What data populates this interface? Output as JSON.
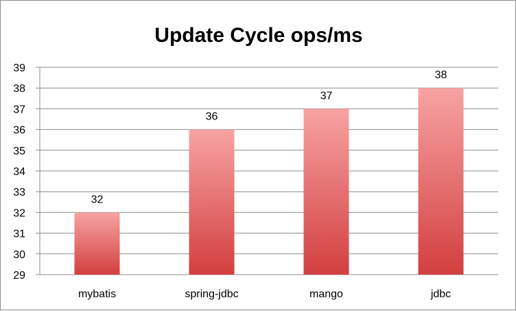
{
  "chart_data": {
    "type": "bar",
    "title": "Update Cycle ops/ms",
    "xlabel": "",
    "ylabel": "",
    "categories": [
      "mybatis",
      "spring-jdbc",
      "mango",
      "jdbc"
    ],
    "values": [
      32,
      36,
      37,
      38
    ],
    "ylim": [
      29,
      39
    ],
    "yticks": [
      29,
      30,
      31,
      32,
      33,
      34,
      35,
      36,
      37,
      38,
      39
    ],
    "data_labels": true,
    "grid": true,
    "legend": "none",
    "bar_color_top": "#f7a3a3",
    "bar_color_bottom": "#d33f3f"
  }
}
